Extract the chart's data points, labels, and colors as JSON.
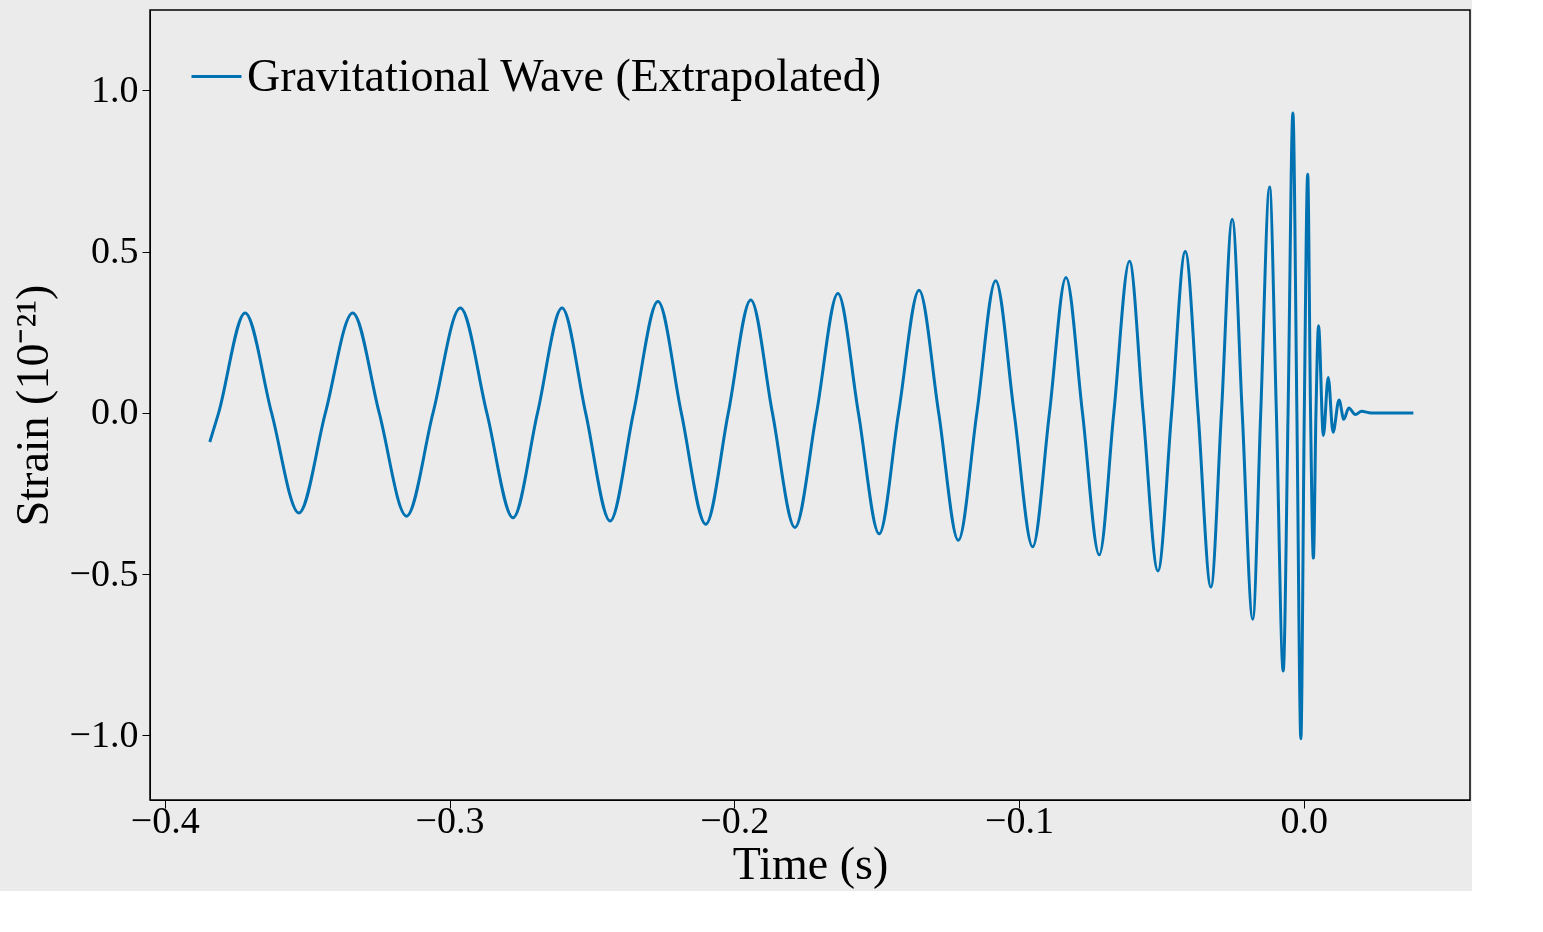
{
  "chart_data": {
    "type": "line",
    "xlabel": "Time (s)",
    "ylabel": "Strain (10⁻²¹)",
    "xlim": [
      -0.4052,
      0.0584
    ],
    "xticks": [
      -0.4,
      -0.3,
      -0.2,
      -0.1,
      {
        "value": 0,
        "label": "0.0"
      }
    ],
    "ylim": [
      -1.2,
      1.249
    ],
    "yticks": [
      {
        "value": -1,
        "label": "−1.0"
      },
      -0.5,
      {
        "value": 0,
        "label": "0.0"
      },
      0.5,
      {
        "value": 1,
        "label": "1.0"
      }
    ],
    "grid": false,
    "legend": "top left",
    "marker": "none",
    "line_style": "solid",
    "series": [
      {
        "name": "Gravitational Wave (Extrapolated)",
        "color": "#0072b2",
        "x": [
          -0.3842,
          -0.3811,
          -0.3718,
          -0.3625,
          -0.3529,
          -0.3436,
          -0.334,
          -0.3247,
          -0.3151,
          -0.3058,
          -0.2962,
          -0.2869,
          -0.2777,
          -0.2691,
          -0.2605,
          -0.2522,
          -0.2436,
          -0.2354,
          -0.2268,
          -0.2186,
          -0.21,
          -0.2021,
          -0.1942,
          -0.1866,
          -0.1787,
          -0.1711,
          -0.1636,
          -0.1564,
          -0.1491,
          -0.1423,
          -0.1351,
          -0.1282,
          -0.1213,
          -0.1148,
          -0.1082,
          -0.1017,
          -0.0952,
          -0.0893,
          -0.0835,
          -0.0777,
          -0.0718,
          -0.0667,
          -0.0612,
          -0.0564,
          -0.0512,
          -0.0464,
          -0.0416,
          -0.0371,
          -0.0326,
          -0.0289,
          -0.0251,
          -0.0216,
          -0.0179,
          -0.0151,
          -0.012,
          -0.0096,
          -0.0072,
          -0.0055,
          -0.0038,
          -0.0024,
          -0.001,
          0.0002,
          0.0014,
          0.0024,
          0.0034,
          0.0043,
          0.0052,
          0.0069,
          0.0086,
          0.0103,
          0.0124,
          0.0141,
          0.0158,
          0.0182,
          0.0203,
          0.0237,
          0.0385
        ],
        "values": [
          -0.09,
          0,
          0.31,
          0,
          -0.31,
          0,
          0.31,
          0,
          -0.32,
          0,
          0.325,
          0,
          -0.325,
          0,
          0.325,
          0,
          -0.335,
          0,
          0.345,
          0,
          -0.345,
          0,
          0.35,
          0,
          -0.355,
          0,
          0.37,
          0,
          -0.375,
          0,
          0.38,
          0,
          -0.395,
          0,
          0.41,
          0,
          -0.415,
          0,
          0.42,
          0,
          -0.44,
          0,
          0.47,
          0,
          -0.49,
          0,
          0.5,
          0,
          -0.54,
          0,
          0.6,
          0,
          -0.64,
          0,
          0.7,
          0,
          -0.8,
          0,
          0.93,
          0,
          -1.01,
          0,
          0.74,
          0,
          -0.45,
          0,
          0.27,
          -0.07,
          0.11,
          -0.06,
          0.04,
          -0.02,
          0.015,
          -0.005,
          0.005,
          0,
          0
        ]
      }
    ]
  }
}
